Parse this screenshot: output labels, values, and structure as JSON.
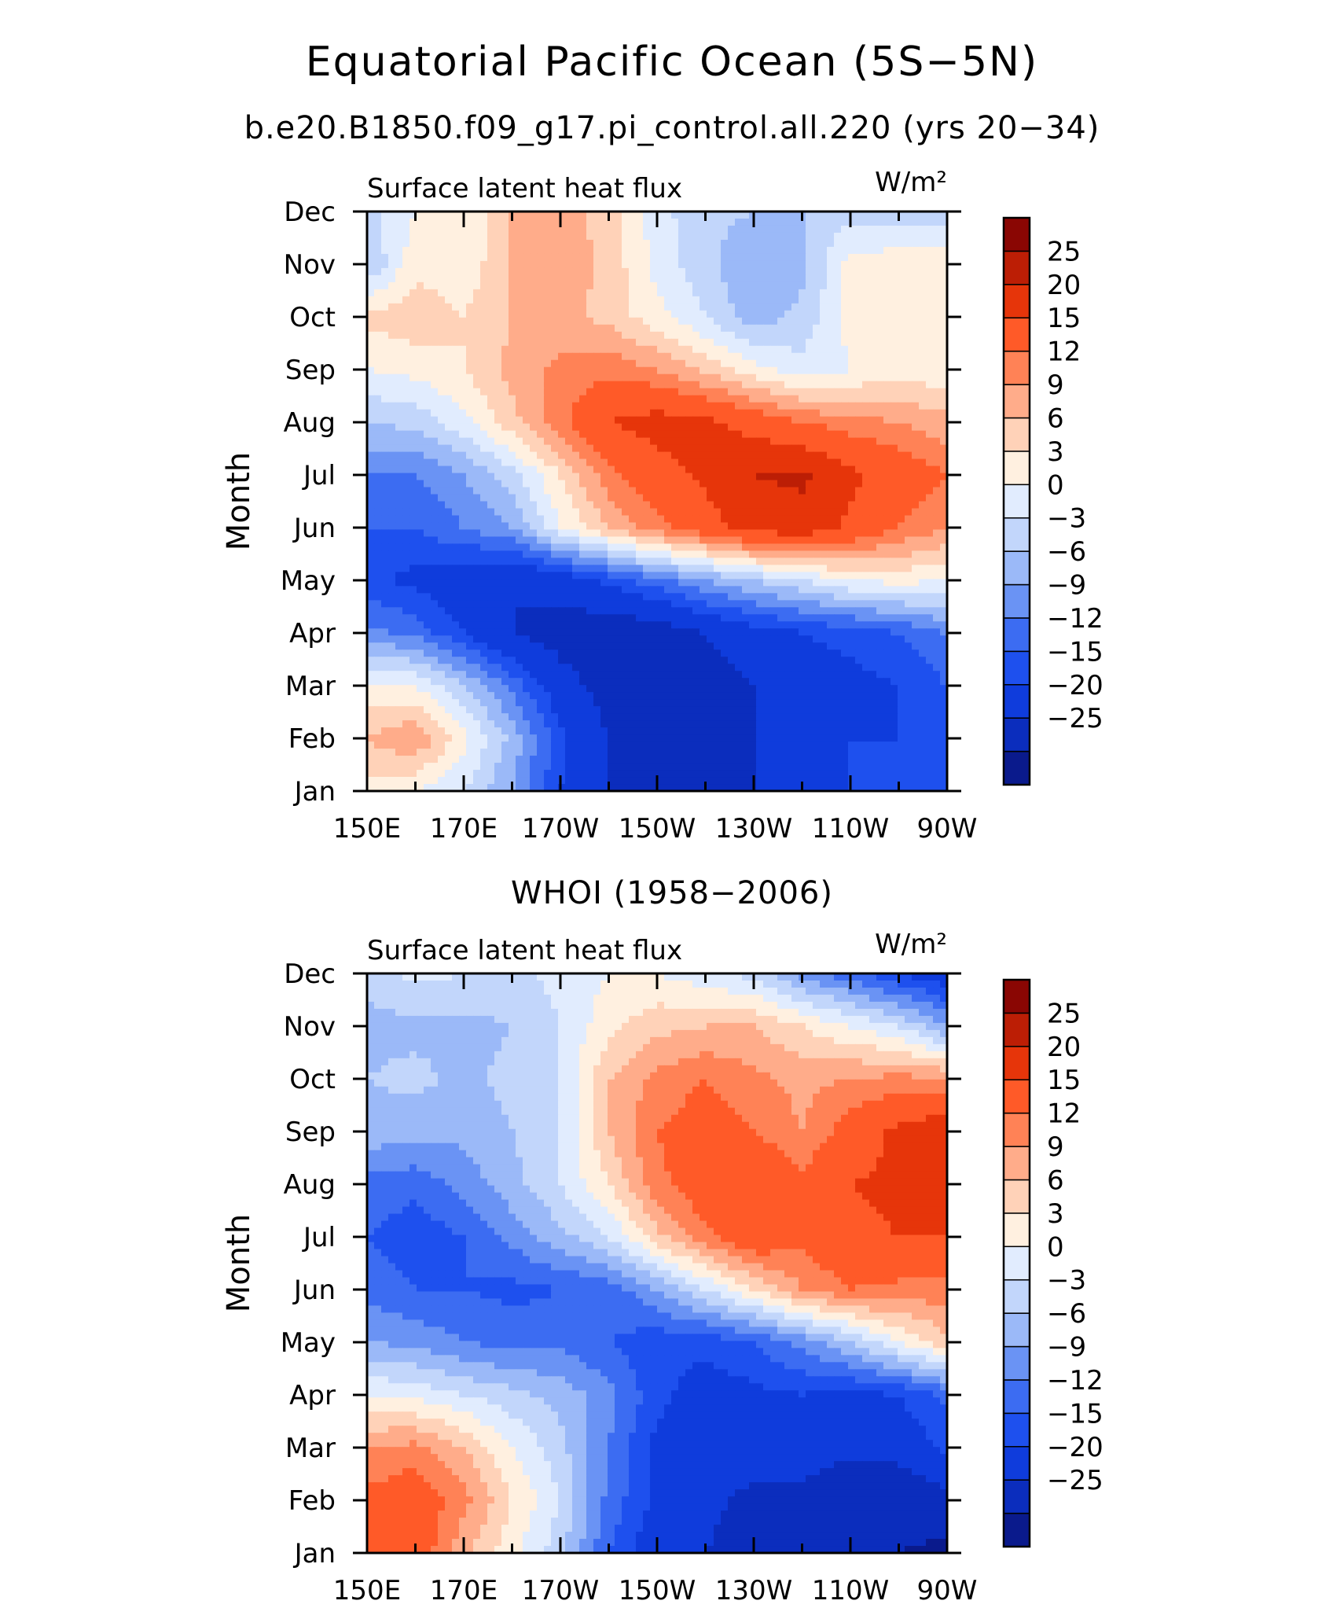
{
  "figure": {
    "title": "Equatorial Pacific Ocean (5S−5N)",
    "subtitle": "b.e20.B1850.f09_g17.pi_control.all.220 (yrs 20−34)"
  },
  "panels": [
    {
      "heading": "",
      "left_label": "Surface latent heat flux",
      "right_label": "W/m²",
      "ylabel": "Month"
    },
    {
      "heading": "WHOI (1958−2006)",
      "left_label": "Surface latent heat flux",
      "right_label": "W/m²",
      "ylabel": "Month"
    }
  ],
  "axes": {
    "x_ticks": [
      "150E",
      "170E",
      "170W",
      "150W",
      "130W",
      "110W",
      "90W"
    ],
    "y_ticks": [
      "Jan",
      "Feb",
      "Mar",
      "Apr",
      "May",
      "Jun",
      "Jul",
      "Aug",
      "Sep",
      "Oct",
      "Nov",
      "Dec"
    ]
  },
  "colorbar": {
    "labels": [
      "25",
      "20",
      "15",
      "12",
      "9",
      "6",
      "3",
      "0",
      "−3",
      "−6",
      "−9",
      "−12",
      "−15",
      "−20",
      "−25"
    ],
    "levels": [
      -25,
      -20,
      -15,
      -12,
      -9,
      -6,
      -3,
      0,
      3,
      6,
      9,
      12,
      15,
      20,
      25
    ],
    "colors": [
      "#0a1a8c",
      "#0b2dbd",
      "#0f3cdc",
      "#1e50ee",
      "#3c6cf2",
      "#6a93f4",
      "#9bb9f8",
      "#c2d6fb",
      "#e1ecfe",
      "#fff0e0",
      "#ffd2b8",
      "#ffac8a",
      "#ff8256",
      "#ff5a28",
      "#e6350a",
      "#bc1e05",
      "#8a0603"
    ]
  },
  "chart_data": [
    {
      "type": "heatmap",
      "title": "Equatorial Pacific Ocean (5S−5N)",
      "subtitle": "b.e20.B1850.f09_g17.pi_control.all.220 (yrs 20−34)",
      "xlabel": "",
      "ylabel": "Month",
      "units": "W/m²",
      "x": [
        150,
        160,
        170,
        180,
        190,
        200,
        210,
        220,
        230,
        240,
        250,
        260,
        270
      ],
      "y": [
        "Jan",
        "Feb",
        "Mar",
        "Apr",
        "May",
        "Jun",
        "Jul",
        "Aug",
        "Sep",
        "Oct",
        "Nov",
        "Dec"
      ],
      "z": [
        [
          5,
          3,
          0,
          -6,
          -15,
          -20,
          -22,
          -22,
          -20,
          -15,
          -15,
          -15,
          -12
        ],
        [
          9,
          12,
          4,
          -4,
          -14,
          -20,
          -22,
          -23,
          -20,
          -16,
          -15,
          -15,
          -12
        ],
        [
          4,
          3,
          -3,
          -10,
          -18,
          -22,
          -24,
          -22,
          -20,
          -17,
          -16,
          -15,
          -12
        ],
        [
          -8,
          -10,
          -15,
          -20,
          -22,
          -24,
          -23,
          -20,
          -17,
          -15,
          -14,
          -12,
          -9
        ],
        [
          -14,
          -16,
          -18,
          -20,
          -18,
          -14,
          -10,
          -6,
          -3,
          0,
          3,
          4,
          3
        ],
        [
          -12,
          -12,
          -9,
          -6,
          3,
          9,
          14,
          18,
          22,
          23,
          19,
          15,
          12
        ],
        [
          -9,
          -9,
          -6,
          -1,
          6,
          14,
          18,
          21,
          25,
          26,
          21,
          18,
          15
        ],
        [
          -3,
          -2,
          2,
          8,
          14,
          20,
          22,
          21,
          18,
          15,
          13,
          12,
          10
        ],
        [
          3,
          4,
          6,
          10,
          13,
          14,
          12,
          8,
          4,
          1,
          3,
          4,
          4
        ],
        [
          7,
          8,
          6,
          9,
          10,
          8,
          4,
          0,
          -5,
          -2,
          4,
          5,
          5
        ],
        [
          -3,
          5,
          4,
          9,
          11,
          8,
          2,
          -2,
          -6,
          -4,
          4,
          5,
          6
        ],
        [
          -1,
          3,
          3,
          9,
          10,
          8,
          1,
          -2,
          -3,
          -3,
          -1,
          -2,
          -2
        ]
      ]
    },
    {
      "type": "heatmap",
      "title": "WHOI (1958−2006)",
      "xlabel": "",
      "ylabel": "Month",
      "units": "W/m²",
      "x": [
        150,
        160,
        170,
        180,
        190,
        200,
        210,
        220,
        230,
        240,
        250,
        260,
        270
      ],
      "y": [
        "Jan",
        "Feb",
        "Mar",
        "Apr",
        "May",
        "Jun",
        "Jul",
        "Aug",
        "Sep",
        "Oct",
        "Nov",
        "Dec"
      ],
      "z": [
        [
          16,
          18,
          10,
          4,
          -2,
          -12,
          -18,
          -20,
          -22,
          -22,
          -24,
          -25,
          -26
        ],
        [
          16,
          18,
          13,
          6,
          0,
          -10,
          -16,
          -19,
          -21,
          -22,
          -24,
          -24,
          -22
        ],
        [
          12,
          13,
          9,
          3,
          -2,
          -9,
          -16,
          -18,
          -18,
          -17,
          -19,
          -18,
          -14
        ],
        [
          3,
          2,
          0,
          -2,
          -4,
          -8,
          -14,
          -17,
          -16,
          -15,
          -16,
          -15,
          -11
        ],
        [
          -6,
          -7,
          -9,
          -10,
          -10,
          -12,
          -14,
          -14,
          -12,
          -8,
          -3,
          3,
          8
        ],
        [
          -10,
          -12,
          -12,
          -13,
          -12,
          -11,
          -6,
          0,
          6,
          12,
          15,
          14,
          14
        ],
        [
          -12,
          -14,
          -12,
          -8,
          -4,
          0,
          8,
          14,
          19,
          16,
          19,
          20,
          20
        ],
        [
          -10,
          -11,
          -8,
          -4,
          0,
          6,
          14,
          18,
          20,
          16,
          20,
          21,
          21
        ],
        [
          -4,
          -5,
          -5,
          -3,
          0,
          9,
          15,
          17,
          15,
          12,
          17,
          21,
          24
        ],
        [
          -3,
          -2,
          -4,
          -2,
          0,
          9,
          13,
          15,
          13,
          11,
          12,
          13,
          12
        ],
        [
          -4,
          -4,
          -4,
          -3,
          0,
          5,
          8,
          9,
          9,
          6,
          3,
          0,
          -6
        ],
        [
          -2,
          1,
          0,
          -1,
          1,
          3,
          3,
          1,
          -1,
          -7,
          -11,
          -15,
          -18
        ]
      ]
    }
  ]
}
